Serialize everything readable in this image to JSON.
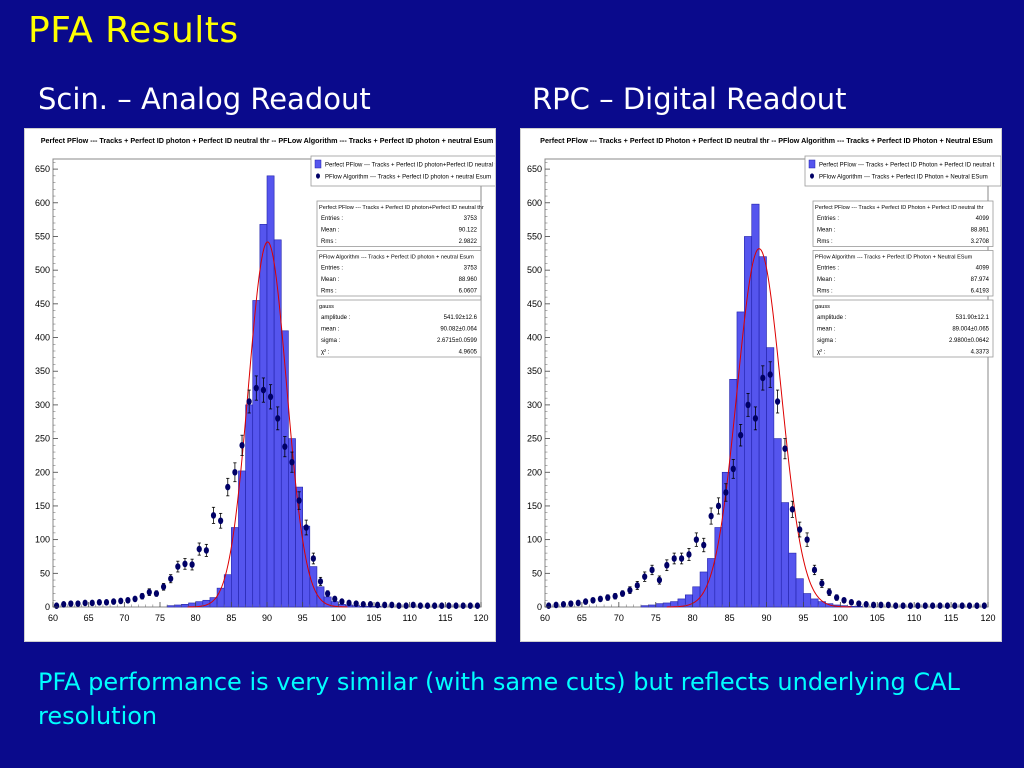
{
  "slide": {
    "title": "PFA Results",
    "left_subtitle": "Scin. – Analog Readout",
    "right_subtitle": "RPC – Digital Readout",
    "caption": "PFA performance is very similar (with same cuts) but reflects underlying CAL resolution"
  },
  "colors": {
    "background": "#0a0a8c",
    "title": "#ffff00",
    "subtitle": "#ffffff",
    "caption": "#00ffff",
    "hist_fill": "#5555ee",
    "hist_edge": "#2222aa",
    "points": "#000066",
    "fit": "#dd0000"
  },
  "chart_data": [
    {
      "type": "bar",
      "title": "Perfect PFlow --- Tracks + Perfect ID photon + Perfect ID neutral thr -- PFLow Algorithm --- Tracks + Perfect ID photon + neutral Esum",
      "xlim": [
        60,
        120
      ],
      "ylim": [
        0,
        665
      ],
      "x_ticks": [
        60,
        65,
        70,
        75,
        80,
        85,
        90,
        95,
        100,
        105,
        110,
        115,
        120
      ],
      "y_ticks": [
        0,
        50,
        100,
        150,
        200,
        250,
        300,
        350,
        400,
        450,
        500,
        550,
        600,
        650
      ],
      "bin_width": 1,
      "legend": [
        {
          "label": "Perfect PFlow --- Tracks + Perfect ID photon+Perfect ID neutral th",
          "marker": "box"
        },
        {
          "label": "PFlow Algorithm --- Tracks + Perfect ID photon + neutral Esum",
          "marker": "dot"
        }
      ],
      "stats": [
        {
          "title": "Perfect PFlow --- Tracks + Perfect ID photon+Perfect ID neutral thr",
          "rows": [
            [
              "Entries :",
              "3753"
            ],
            [
              "Mean :",
              "90.122"
            ],
            [
              "Rms :",
              "2.9822"
            ]
          ]
        },
        {
          "title": "PFlow Algorithm --- Tracks + Perfect ID photon + neutral Esum",
          "rows": [
            [
              "Entries :",
              "3753"
            ],
            [
              "Mean :",
              "88.960"
            ],
            [
              "Rms :",
              "6.0607"
            ]
          ]
        },
        {
          "title": "gauss",
          "rows": [
            [
              "amplitude :",
              "541.92±12.6"
            ],
            [
              "mean :",
              "90.082±0.064"
            ],
            [
              "sigma :",
              "2.6715±0.0599"
            ],
            [
              "χ² :",
              "4.9605"
            ]
          ]
        }
      ],
      "gauss": {
        "amplitude": 541.92,
        "mean": 90.082,
        "sigma": 2.6715
      },
      "histogram": {
        "bin_start": [
          76,
          77,
          78,
          79,
          80,
          81,
          82,
          83,
          84,
          85,
          86,
          87,
          88,
          89,
          90,
          91,
          92,
          93,
          94,
          95,
          96,
          97,
          98,
          99,
          100,
          101,
          102,
          103,
          104,
          105
        ],
        "values": [
          2,
          3,
          4,
          6,
          8,
          10,
          14,
          28,
          48,
          118,
          202,
          300,
          455,
          568,
          640,
          545,
          410,
          250,
          178,
          120,
          60,
          30,
          15,
          8,
          4,
          3,
          2,
          1,
          1,
          1
        ]
      },
      "points": {
        "x": [
          60.5,
          61.5,
          62.5,
          63.5,
          64.5,
          65.5,
          66.5,
          67.5,
          68.5,
          69.5,
          70.5,
          71.5,
          72.5,
          73.5,
          74.5,
          75.5,
          76.5,
          77.5,
          78.5,
          79.5,
          80.5,
          81.5,
          82.5,
          83.5,
          84.5,
          85.5,
          86.5,
          87.5,
          88.5,
          89.5,
          90.5,
          91.5,
          92.5,
          93.5,
          94.5,
          95.5,
          96.5,
          97.5,
          98.5,
          99.5,
          100.5,
          101.5,
          102.5,
          103.5,
          104.5,
          105.5,
          106.5,
          107.5,
          108.5,
          109.5,
          110.5,
          111.5,
          112.5,
          113.5,
          114.5,
          115.5,
          116.5,
          117.5,
          118.5,
          119.5
        ],
        "y": [
          2,
          4,
          5,
          5,
          6,
          6,
          7,
          7,
          8,
          9,
          10,
          12,
          16,
          22,
          20,
          30,
          42,
          60,
          64,
          63,
          86,
          84,
          136,
          128,
          178,
          200,
          240,
          305,
          325,
          322,
          312,
          280,
          238,
          215,
          158,
          118,
          72,
          38,
          20,
          12,
          8,
          6,
          5,
          4,
          4,
          3,
          3,
          3,
          2,
          2,
          3,
          2,
          2,
          2,
          2,
          2,
          2,
          2,
          2,
          2
        ],
        "err": [
          1,
          2,
          2,
          2,
          2,
          2,
          3,
          3,
          3,
          3,
          3,
          3,
          4,
          5,
          4,
          5,
          6,
          8,
          8,
          8,
          9,
          9,
          12,
          11,
          13,
          14,
          15,
          17,
          18,
          18,
          18,
          17,
          15,
          15,
          13,
          11,
          8,
          6,
          4,
          3,
          3,
          2,
          2,
          2,
          2,
          2,
          2,
          2,
          1,
          1,
          2,
          1,
          1,
          1,
          1,
          1,
          1,
          1,
          1,
          1
        ]
      }
    },
    {
      "type": "bar",
      "title": "Perfect PFlow --- Tracks + Perfect ID Photon + Perfect ID neutral thr -- PFlow Algorithm --- Tracks + Perfect ID Photon + Neutral ESum",
      "xlim": [
        60,
        120
      ],
      "ylim": [
        0,
        665
      ],
      "x_ticks": [
        60,
        65,
        70,
        75,
        80,
        85,
        90,
        95,
        100,
        105,
        110,
        115,
        120
      ],
      "y_ticks": [
        0,
        50,
        100,
        150,
        200,
        250,
        300,
        350,
        400,
        450,
        500,
        550,
        600,
        650
      ],
      "bin_width": 1,
      "legend": [
        {
          "label": "Perfect PFlow --- Tracks + Perfect ID Photon + Perfect ID neutral t",
          "marker": "box"
        },
        {
          "label": "PFlow Algorithm --- Tracks + Perfect ID Photon + Neutral ESum",
          "marker": "dot"
        }
      ],
      "stats": [
        {
          "title": "Perfect PFlow --- Tracks + Perfect ID Photon + Perfect ID neutral thr",
          "rows": [
            [
              "Entries :",
              "4099"
            ],
            [
              "Mean :",
              "88.861"
            ],
            [
              "Rms :",
              "3.2708"
            ]
          ]
        },
        {
          "title": "PFlow Algorithm --- Tracks + Perfect ID Photon + Neutral ESum",
          "rows": [
            [
              "Entries :",
              "4099"
            ],
            [
              "Mean :",
              "87.974"
            ],
            [
              "Rms :",
              "6.4193"
            ]
          ]
        },
        {
          "title": "gauss",
          "rows": [
            [
              "amplitude :",
              "531.90±12.1"
            ],
            [
              "mean :",
              "89.004±0.065"
            ],
            [
              "sigma :",
              "2.9800±0.0642"
            ],
            [
              "χ² :",
              "4.3373"
            ]
          ]
        }
      ],
      "gauss": {
        "amplitude": 531.9,
        "mean": 89.004,
        "sigma": 2.98
      },
      "histogram": {
        "bin_start": [
          73,
          74,
          75,
          76,
          77,
          78,
          79,
          80,
          81,
          82,
          83,
          84,
          85,
          86,
          87,
          88,
          89,
          90,
          91,
          92,
          93,
          94,
          95,
          96,
          97,
          98,
          99,
          100,
          101,
          102
        ],
        "values": [
          2,
          3,
          5,
          6,
          8,
          12,
          18,
          30,
          52,
          72,
          118,
          200,
          338,
          438,
          550,
          598,
          520,
          385,
          250,
          155,
          80,
          42,
          20,
          12,
          8,
          5,
          3,
          2,
          1,
          1
        ]
      },
      "points": {
        "x": [
          60.5,
          61.5,
          62.5,
          63.5,
          64.5,
          65.5,
          66.5,
          67.5,
          68.5,
          69.5,
          70.5,
          71.5,
          72.5,
          73.5,
          74.5,
          75.5,
          76.5,
          77.5,
          78.5,
          79.5,
          80.5,
          81.5,
          82.5,
          83.5,
          84.5,
          85.5,
          86.5,
          87.5,
          88.5,
          89.5,
          90.5,
          91.5,
          92.5,
          93.5,
          94.5,
          95.5,
          96.5,
          97.5,
          98.5,
          99.5,
          100.5,
          101.5,
          102.5,
          103.5,
          104.5,
          105.5,
          106.5,
          107.5,
          108.5,
          109.5,
          110.5,
          111.5,
          112.5,
          113.5,
          114.5,
          115.5,
          116.5,
          117.5,
          118.5,
          119.5
        ],
        "y": [
          2,
          3,
          4,
          5,
          6,
          8,
          10,
          12,
          14,
          16,
          20,
          25,
          32,
          45,
          55,
          40,
          62,
          72,
          72,
          78,
          100,
          92,
          135,
          150,
          170,
          205,
          255,
          300,
          280,
          340,
          345,
          305,
          235,
          145,
          115,
          100,
          55,
          35,
          22,
          14,
          10,
          7,
          5,
          4,
          3,
          3,
          3,
          2,
          2,
          2,
          2,
          2,
          2,
          2,
          2,
          2,
          2,
          2,
          2,
          2
        ],
        "err": [
          1,
          2,
          2,
          2,
          2,
          3,
          3,
          3,
          4,
          4,
          4,
          5,
          6,
          7,
          7,
          6,
          8,
          8,
          8,
          9,
          10,
          10,
          12,
          12,
          13,
          14,
          16,
          17,
          17,
          18,
          19,
          17,
          15,
          12,
          11,
          10,
          7,
          6,
          5,
          4,
          3,
          3,
          2,
          2,
          2,
          2,
          2,
          1,
          1,
          1,
          1,
          1,
          1,
          1,
          1,
          1,
          1,
          1,
          1,
          1
        ]
      }
    }
  ]
}
